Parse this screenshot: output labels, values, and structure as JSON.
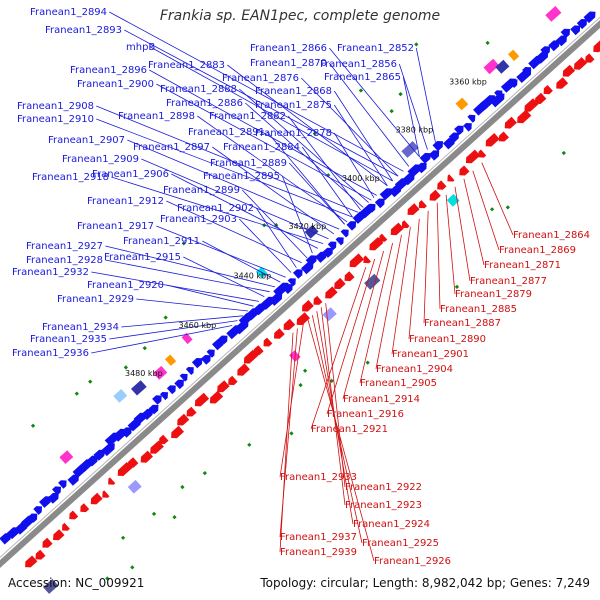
{
  "title": "Frankia sp. EAN1pec, complete genome",
  "footer": {
    "accession": "Accession: NC_009921",
    "summary": "Topology: circular; Length: 8,982,042 bp; Genes: 7,249"
  },
  "colors": {
    "forward_label": "#1a1adc",
    "reverse_label": "#d01010",
    "backbone": "#8a8a8a",
    "forward_gene": "#1010ee",
    "reverse_gene": "#ee1010"
  },
  "ticks": [
    "3360 kbp",
    "3380 kbp",
    "3400 kbp",
    "3420 kbp",
    "3440 kbp",
    "3460 kbp",
    "3480 kbp"
  ],
  "forward_labels": [
    "Franean1_2894",
    "Franean1_2893",
    "mhpB",
    "Franean1_2883",
    "Franean1_2896",
    "Franean1_2900",
    "Franean1_2888",
    "Franean1_2886",
    "Franean1_2908",
    "Franean1_2910",
    "Franean1_2898",
    "Franean1_2891",
    "Franean1_2907",
    "Franean1_2897",
    "Franean1_2909",
    "Franean1_2918",
    "Franean1_2906",
    "Franean1_2895",
    "Franean1_2899",
    "Franean1_2912",
    "Franean1_2902",
    "Franean1_2903",
    "Franean1_2917",
    "Franean1_2911",
    "Franean1_2927",
    "Franean1_2928",
    "Franean1_2915",
    "Franean1_2932",
    "Franean1_2920",
    "Franean1_2929",
    "Franean1_2934",
    "Franean1_2935",
    "Franean1_2936",
    "Franean1_2866",
    "Franean1_2852",
    "Franean1_2870",
    "Franean1_2856",
    "Franean1_2876",
    "Franean1_2865",
    "Franean1_2868",
    "Franean1_2875",
    "Franean1_2882",
    "Franean1_2878",
    "Franean1_2884",
    "Franean1_2889"
  ],
  "reverse_labels": [
    "Franean1_2864",
    "Franean1_2869",
    "Franean1_2871",
    "Franean1_2877",
    "Franean1_2879",
    "Franean1_2885",
    "Franean1_2887",
    "Franean1_2890",
    "Franean1_2901",
    "Franean1_2904",
    "Franean1_2905",
    "Franean1_2914",
    "Franean1_2916",
    "Franean1_2921",
    "Franean1_2933",
    "Franean1_2922",
    "Franean1_2923",
    "Franean1_2924",
    "Franean1_2937",
    "Franean1_2925",
    "Franean1_2939",
    "Franean1_2926"
  ]
}
